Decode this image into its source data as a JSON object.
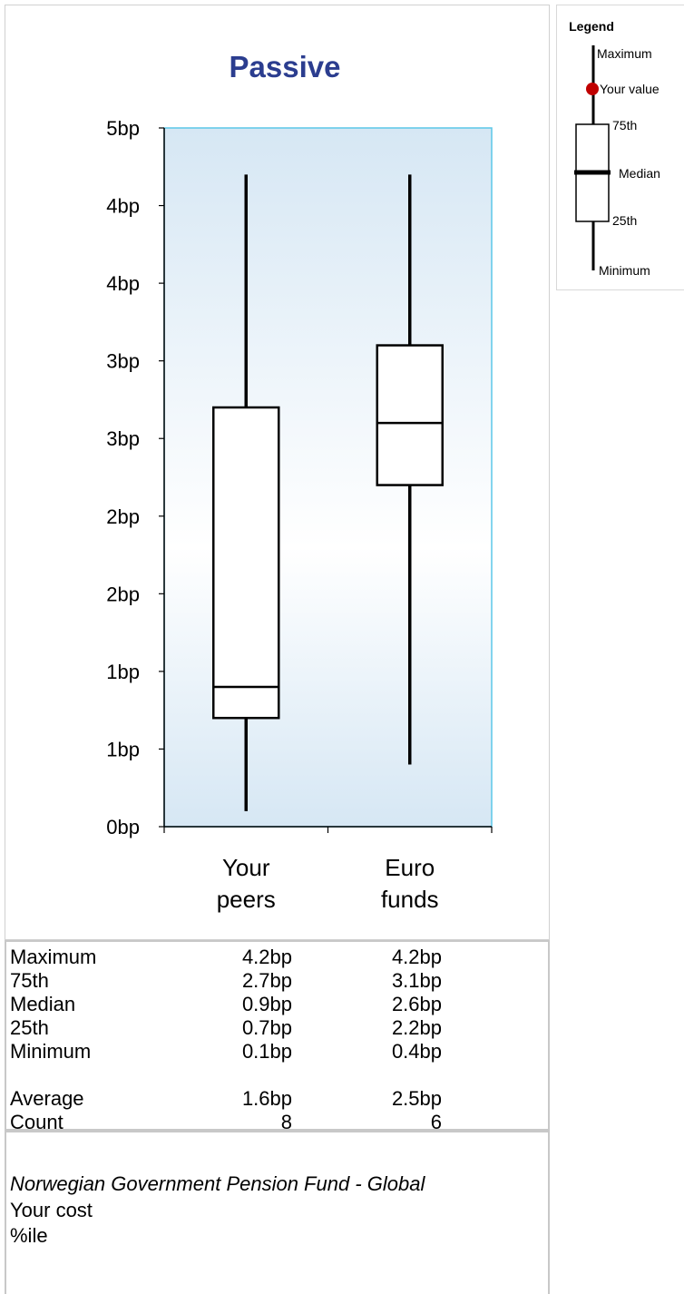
{
  "chart_data": {
    "type": "box",
    "title": "Passive",
    "y_tick_labels": [
      "0bp",
      "1bp",
      "1bp",
      "2bp",
      "2bp",
      "3bp",
      "3bp",
      "4bp",
      "4bp",
      "5bp"
    ],
    "ylim": [
      0,
      4.5
    ],
    "categories": [
      "Your peers",
      "Euro funds"
    ],
    "category_lines": [
      [
        "Your",
        "peers"
      ],
      [
        "Euro",
        "funds"
      ]
    ],
    "boxes": [
      {
        "name": "Your peers",
        "maximum": 4.2,
        "q3": 2.7,
        "median": 0.9,
        "q1": 0.7,
        "minimum": 0.1
      },
      {
        "name": "Euro funds",
        "maximum": 4.2,
        "q3": 3.1,
        "median": 2.6,
        "q1": 2.2,
        "minimum": 0.4
      }
    ],
    "colors": {
      "plot_top": "#d6e7f4",
      "plot_mid": "#ffffff",
      "plot_bottom": "#d6e7f4",
      "plot_border": "#5bc7e8",
      "title": "#2b3d8f"
    }
  },
  "stats": {
    "rows": [
      {
        "label": "Maximum",
        "peers": "4.2bp",
        "euro": "4.2bp"
      },
      {
        "label": "75th",
        "peers": "2.7bp",
        "euro": "3.1bp"
      },
      {
        "label": "Median",
        "peers": "0.9bp",
        "euro": "2.6bp"
      },
      {
        "label": "25th",
        "peers": "0.7bp",
        "euro": "2.2bp"
      },
      {
        "label": "Minimum",
        "peers": "0.1bp",
        "euro": "0.4bp"
      },
      {
        "label": "Average",
        "peers": "1.6bp",
        "euro": "2.5bp"
      },
      {
        "label": "Count",
        "peers": "8",
        "euro": "6"
      }
    ]
  },
  "footer": {
    "fund_name": "Norwegian Government Pension Fund - Global",
    "your_cost": "Your cost",
    "percentile": "%ile"
  },
  "legend": {
    "title": "Legend",
    "maximum": "Maximum",
    "your_value": "Your value",
    "p75": "75th",
    "median": "Median",
    "p25": "25th",
    "minimum": "Minimum",
    "your_value_color": "#c00000"
  }
}
